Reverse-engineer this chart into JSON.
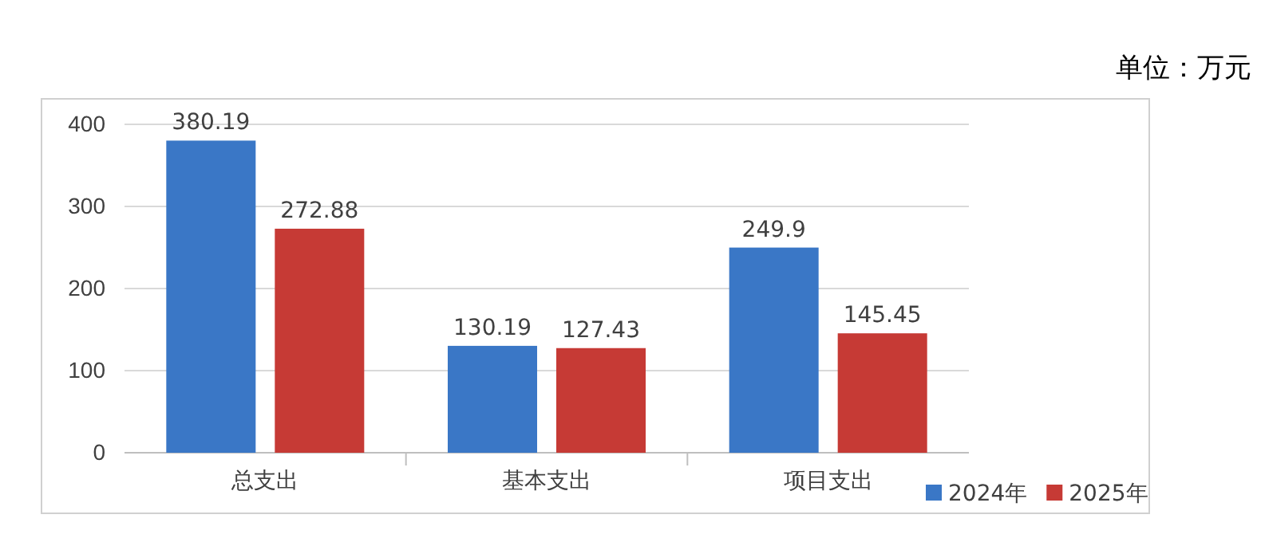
{
  "chart_data": {
    "type": "bar",
    "annotations": [
      "单位：万元"
    ],
    "categories": [
      "总支出",
      "基本支出",
      "项目支出"
    ],
    "series": [
      {
        "name": "2024年",
        "color": "#3a77c6",
        "values": [
          380.19,
          130.19,
          249.9
        ]
      },
      {
        "name": "2025年",
        "color": "#c63a35",
        "values": [
          272.88,
          127.43,
          145.45
        ]
      }
    ],
    "ylim": [
      0,
      400
    ],
    "yticks": [
      0,
      100,
      200,
      300,
      400
    ],
    "grid": "y",
    "legend": "bottom right",
    "data_labels": true
  }
}
